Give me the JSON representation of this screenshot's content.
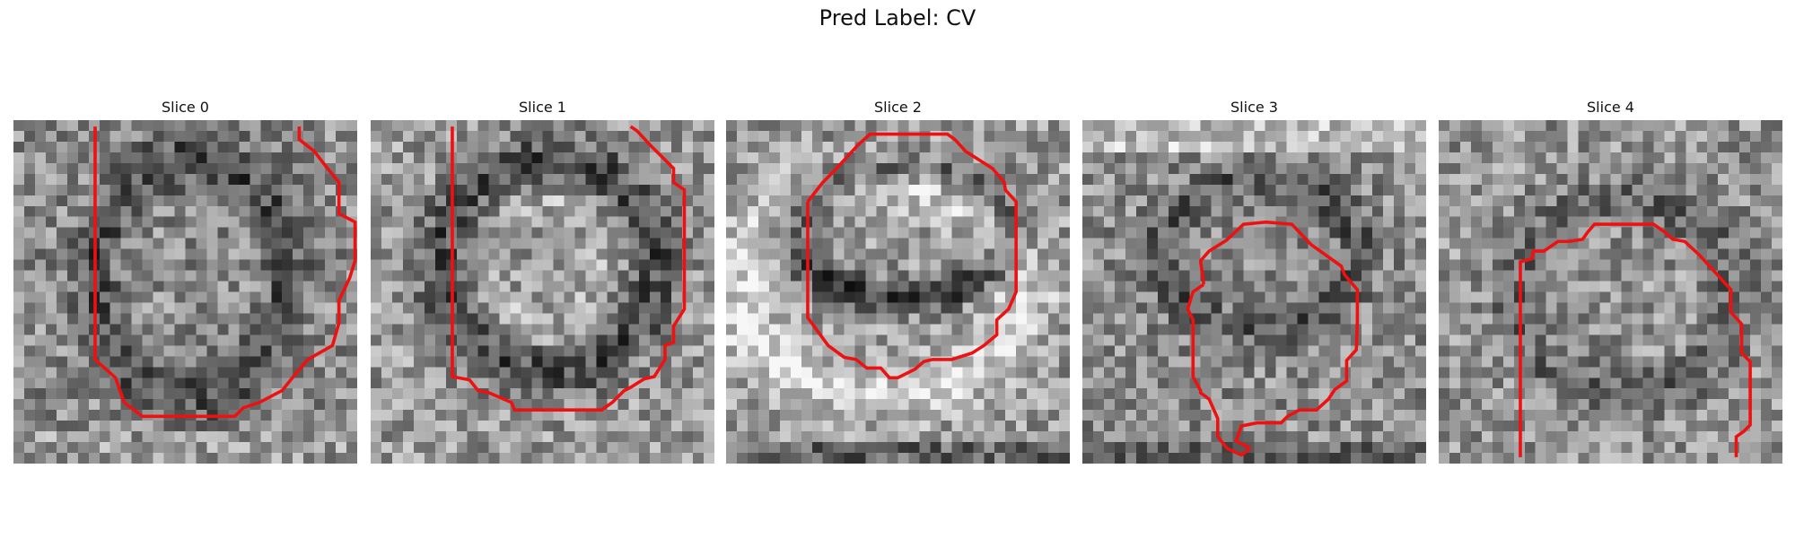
{
  "figure": {
    "title": "Pred Label: CV"
  },
  "panels": [
    {
      "title": "Slice 0",
      "seed": 11,
      "pattern": "ring-left",
      "contour": [
        [
          7.6,
          0.6
        ],
        [
          7.6,
          22.3
        ],
        [
          9.5,
          24.0
        ],
        [
          10.3,
          26.3
        ],
        [
          12.0,
          27.6
        ],
        [
          20.6,
          27.6
        ],
        [
          21.4,
          26.8
        ],
        [
          22.9,
          26.3
        ],
        [
          25.0,
          25.2
        ],
        [
          26.3,
          23.6
        ],
        [
          27.4,
          22.3
        ],
        [
          29.7,
          21.0
        ],
        [
          30.3,
          18.9
        ],
        [
          30.3,
          16.8
        ],
        [
          31.3,
          14.7
        ],
        [
          31.8,
          13.1
        ],
        [
          31.8,
          9.5
        ],
        [
          30.3,
          8.7
        ],
        [
          30.3,
          5.8
        ],
        [
          29.0,
          4.2
        ],
        [
          28.0,
          2.9
        ],
        [
          26.6,
          1.8
        ],
        [
          26.6,
          0.6
        ]
      ]
    },
    {
      "title": "Slice 1",
      "seed": 23,
      "pattern": "ring-center",
      "contour": [
        [
          7.6,
          0.6
        ],
        [
          7.6,
          23.9
        ],
        [
          9.2,
          24.2
        ],
        [
          10.0,
          25.2
        ],
        [
          11.0,
          25.4
        ],
        [
          13.1,
          26.3
        ],
        [
          13.4,
          27.0
        ],
        [
          21.5,
          27.0
        ],
        [
          22.5,
          26.3
        ],
        [
          23.6,
          25.2
        ],
        [
          24.2,
          24.9
        ],
        [
          25.0,
          24.4
        ],
        [
          25.5,
          24.1
        ],
        [
          26.4,
          23.9
        ],
        [
          27.4,
          22.3
        ],
        [
          27.4,
          21.0
        ],
        [
          28.2,
          20.7
        ],
        [
          28.2,
          19.2
        ],
        [
          29.2,
          17.6
        ],
        [
          29.2,
          16.0
        ],
        [
          29.2,
          6.5
        ],
        [
          28.2,
          5.8
        ],
        [
          28.2,
          4.5
        ],
        [
          26.1,
          2.4
        ],
        [
          24.8,
          1.0
        ],
        [
          24.2,
          0.6
        ]
      ]
    },
    {
      "title": "Slice 2",
      "seed": 37,
      "pattern": "ring-upper",
      "contour": [
        [
          7.6,
          7.6
        ],
        [
          7.6,
          18.4
        ],
        [
          9.5,
          21.0
        ],
        [
          11.0,
          22.1
        ],
        [
          12.1,
          22.3
        ],
        [
          13.1,
          23.1
        ],
        [
          14.4,
          23.1
        ],
        [
          15.2,
          24.0
        ],
        [
          16.0,
          24.0
        ],
        [
          17.6,
          23.2
        ],
        [
          18.4,
          22.5
        ],
        [
          19.2,
          22.3
        ],
        [
          21.0,
          22.3
        ],
        [
          22.9,
          21.7
        ],
        [
          24.0,
          21.0
        ],
        [
          25.2,
          20.0
        ],
        [
          25.2,
          18.6
        ],
        [
          26.3,
          17.6
        ],
        [
          27.0,
          16.0
        ],
        [
          27.0,
          7.6
        ],
        [
          26.0,
          6.5
        ],
        [
          25.9,
          5.8
        ],
        [
          24.8,
          4.5
        ],
        [
          22.3,
          2.9
        ],
        [
          21.3,
          1.8
        ],
        [
          20.6,
          1.3
        ],
        [
          13.4,
          1.3
        ],
        [
          12.3,
          2.3
        ],
        [
          10.0,
          4.8
        ],
        [
          9.0,
          5.8
        ],
        [
          7.6,
          7.6
        ]
      ]
    },
    {
      "title": "Slice 3",
      "seed": 53,
      "pattern": "ring-lower",
      "contour": [
        [
          11.3,
          15.3
        ],
        [
          10.3,
          16.0
        ],
        [
          9.8,
          17.6
        ],
        [
          10.3,
          18.6
        ],
        [
          10.3,
          23.9
        ],
        [
          11.0,
          25.2
        ],
        [
          11.0,
          25.4
        ],
        [
          11.8,
          26.0
        ],
        [
          12.6,
          27.8
        ],
        [
          12.6,
          29.5
        ],
        [
          13.5,
          30.6
        ],
        [
          14.8,
          31.2
        ],
        [
          15.5,
          30.7
        ],
        [
          15.5,
          30.5
        ],
        [
          14.3,
          29.9
        ],
        [
          14.8,
          28.5
        ],
        [
          16.3,
          28.2
        ],
        [
          18.5,
          28.2
        ],
        [
          19.1,
          27.6
        ],
        [
          20.2,
          27.0
        ],
        [
          21.8,
          27.0
        ],
        [
          22.9,
          26.0
        ],
        [
          23.5,
          25.1
        ],
        [
          24.6,
          24.3
        ],
        [
          24.6,
          22.4
        ],
        [
          25.5,
          21.4
        ],
        [
          25.6,
          18.7
        ],
        [
          25.6,
          15.8
        ],
        [
          24.4,
          14.4
        ],
        [
          24.1,
          13.6
        ],
        [
          21.3,
          11.6
        ],
        [
          19.5,
          9.7
        ],
        [
          17.1,
          9.5
        ],
        [
          15.0,
          9.7
        ],
        [
          13.4,
          11.2
        ],
        [
          11.8,
          12.2
        ],
        [
          11.0,
          13.1
        ],
        [
          11.3,
          15.3
        ]
      ]
    },
    {
      "title": "Slice 4",
      "seed": 71,
      "pattern": "ring-bottom",
      "contour": [
        [
          7.6,
          31.4
        ],
        [
          7.6,
          13.2
        ],
        [
          8.7,
          12.9
        ],
        [
          8.8,
          12.2
        ],
        [
          9.8,
          12.2
        ],
        [
          11.1,
          11.3
        ],
        [
          12.2,
          11.3
        ],
        [
          13.4,
          11.1
        ],
        [
          13.9,
          10.4
        ],
        [
          14.5,
          9.7
        ],
        [
          20.0,
          9.7
        ],
        [
          21.0,
          10.4
        ],
        [
          21.8,
          11.1
        ],
        [
          22.9,
          11.3
        ],
        [
          24.3,
          12.6
        ],
        [
          26.3,
          14.8
        ],
        [
          27.2,
          15.8
        ],
        [
          27.2,
          17.9
        ],
        [
          28.2,
          19.0
        ],
        [
          28.2,
          21.7
        ],
        [
          29.0,
          22.5
        ],
        [
          29.0,
          28.4
        ],
        [
          28.4,
          29.0
        ],
        [
          27.7,
          29.5
        ],
        [
          27.7,
          31.4
        ]
      ]
    }
  ]
}
